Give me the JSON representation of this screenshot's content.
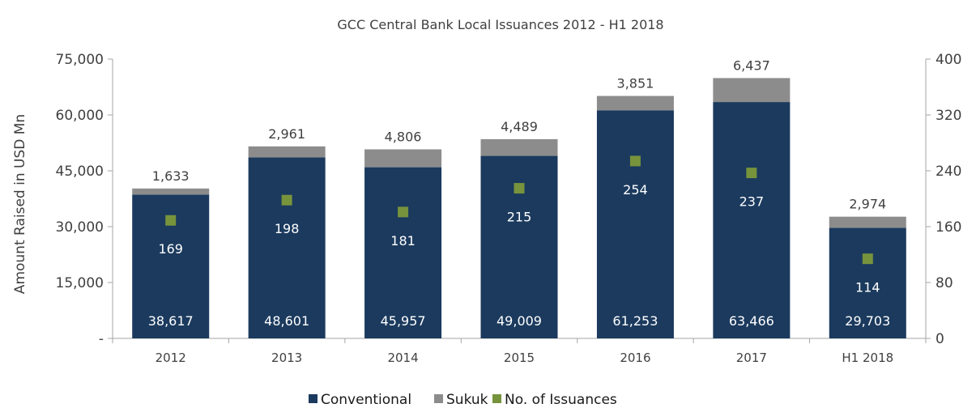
{
  "chart_data": {
    "type": "bar",
    "title": "GCC Central Bank Local Issuances 2012 - H1 2018",
    "ylabel": "Amount Raised in USD Mn",
    "y2label": "",
    "categories": [
      "2012",
      "2013",
      "2014",
      "2015",
      "2016",
      "2017",
      "H1 2018"
    ],
    "ylim": [
      0,
      75000
    ],
    "y2lim": [
      0,
      400
    ],
    "yticks": [
      0,
      15000,
      30000,
      45000,
      60000,
      75000
    ],
    "ytick_labels": [
      "-",
      "15,000",
      "30,000",
      "45,000",
      "60,000",
      "75,000"
    ],
    "y2ticks": [
      0,
      80,
      160,
      240,
      320,
      400
    ],
    "y2tick_labels": [
      "0",
      "80",
      "160",
      "240",
      "320",
      "400"
    ],
    "stacked": true,
    "series": [
      {
        "name": "Conventional",
        "axis": "left",
        "kind": "bar",
        "color": "#1b3a5e",
        "values": [
          38617,
          48601,
          45957,
          49009,
          61253,
          63466,
          29703
        ],
        "labels": [
          "38,617",
          "48,601",
          "45,957",
          "49,009",
          "61,253",
          "63,466",
          "29,703"
        ]
      },
      {
        "name": "Sukuk",
        "axis": "left",
        "kind": "bar",
        "color": "#8c8c8c",
        "values": [
          1633,
          2961,
          4806,
          4489,
          3851,
          6437,
          2974
        ],
        "labels": [
          "1,633",
          "2,961",
          "4,806",
          "4,489",
          "3,851",
          "6,437",
          "2,974"
        ]
      },
      {
        "name": "No. of Issuances",
        "axis": "right",
        "kind": "marker",
        "color": "#77933c",
        "values": [
          169,
          198,
          181,
          215,
          254,
          237,
          114
        ],
        "labels": [
          "169",
          "198",
          "181",
          "215",
          "254",
          "237",
          "114"
        ]
      }
    ],
    "legend": {
      "position": "bottom"
    },
    "grid": false
  }
}
